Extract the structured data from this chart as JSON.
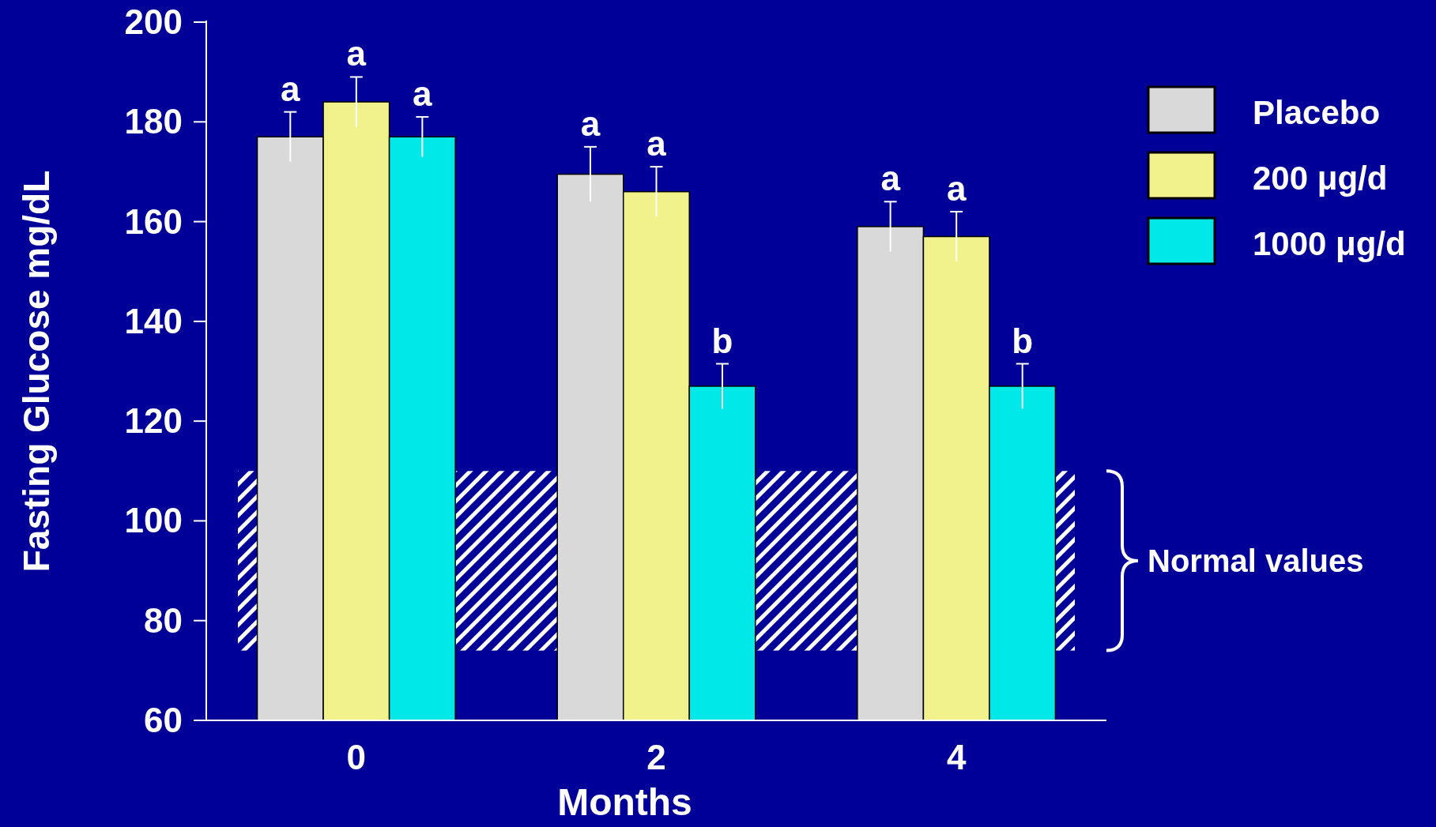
{
  "chart_data": {
    "type": "bar",
    "xlabel": "Months",
    "ylabel": "Fasting Glucose mg/dL",
    "categories": [
      "0",
      "2",
      "4"
    ],
    "series": [
      {
        "name": "Placebo",
        "color": "#d9d9d9",
        "values": [
          177,
          169.5,
          159
        ],
        "errors": [
          5,
          5.5,
          5
        ]
      },
      {
        "name": "200 μg/d",
        "color": "#f2f28c",
        "values": [
          184,
          166,
          157
        ],
        "errors": [
          5,
          5,
          5
        ]
      },
      {
        "name": "1000 μg/d",
        "color": "#00e8e8",
        "values": [
          177,
          127,
          127
        ],
        "errors": [
          4,
          4.5,
          4.5
        ]
      }
    ],
    "ylim": [
      60,
      200
    ],
    "yticks": [
      60,
      80,
      100,
      120,
      140,
      160,
      180,
      200
    ],
    "grid": false,
    "legend": "right",
    "bands": [
      {
        "axis": "y",
        "from": 74,
        "to": 110,
        "label": "Normal values",
        "color": "#ffffff"
      }
    ],
    "annotations": [
      "a",
      "a",
      "a",
      "a",
      "a",
      "b",
      "a",
      "a",
      "b"
    ]
  }
}
